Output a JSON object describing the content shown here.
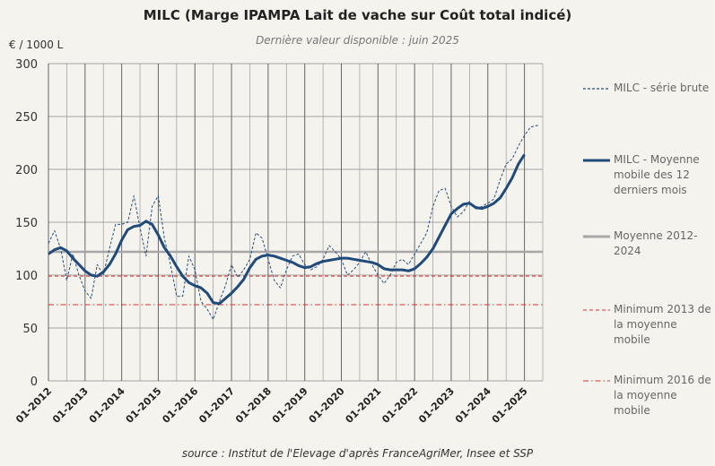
{
  "title": "MILC (Marge IPAMPA Lait de vache sur Coût total indicé)",
  "subtitle": "Dernière valeur disponible : juin 2025",
  "unit": "€ / 1000 L",
  "source": "source : Institut de l'Elevage d'après FranceAgriMer, Insee et SSP",
  "colors": {
    "raw": "#2a4d78",
    "moving_avg": "#1f4a7a",
    "mean": "#a6a6a6",
    "min2013": "#d9312b",
    "min2016": "#d9312b",
    "grid": "#888888",
    "background": "#f5f3ee"
  },
  "chart_data": {
    "type": "line",
    "ylim": [
      0,
      300
    ],
    "yticks": [
      0,
      50,
      100,
      150,
      200,
      250,
      300
    ],
    "x_tick_labels": [
      "01-2012",
      "01-2013",
      "01-2014",
      "01-2015",
      "01-2016",
      "01-2017",
      "01-2018",
      "01-2019",
      "01-2020",
      "01-2021",
      "01-2022",
      "01-2023",
      "01-2024",
      "01-2025"
    ],
    "legend": [
      {
        "key": "raw",
        "label": "MILC - série brute"
      },
      {
        "key": "moving_avg",
        "label": "MILC - Moyenne mobile des 12 derniers mois"
      },
      {
        "key": "mean",
        "label": "Moyenne 2012-2024"
      },
      {
        "key": "min2013",
        "label": "Minimum 2013  de la moyenne mobile"
      },
      {
        "key": "min2016",
        "label": "Minimum 2016 de la moyenne mobile"
      }
    ],
    "series": [
      {
        "name": "MILC - série brute",
        "key": "raw",
        "points": [
          [
            "2012-01",
            130
          ],
          [
            "2012-03",
            142
          ],
          [
            "2012-05",
            125
          ],
          [
            "2012-07",
            95
          ],
          [
            "2012-09",
            120
          ],
          [
            "2012-11",
            100
          ],
          [
            "2013-01",
            85
          ],
          [
            "2013-03",
            78
          ],
          [
            "2013-05",
            110
          ],
          [
            "2013-07",
            100
          ],
          [
            "2013-09",
            125
          ],
          [
            "2013-11",
            148
          ],
          [
            "2014-01",
            148
          ],
          [
            "2014-03",
            150
          ],
          [
            "2014-05",
            175
          ],
          [
            "2014-07",
            145
          ],
          [
            "2014-09",
            118
          ],
          [
            "2014-11",
            165
          ],
          [
            "2015-01",
            175
          ],
          [
            "2015-03",
            135
          ],
          [
            "2015-05",
            110
          ],
          [
            "2015-07",
            80
          ],
          [
            "2015-09",
            80
          ],
          [
            "2015-11",
            118
          ],
          [
            "2016-01",
            105
          ],
          [
            "2016-03",
            75
          ],
          [
            "2016-05",
            68
          ],
          [
            "2016-07",
            58
          ],
          [
            "2016-09",
            75
          ],
          [
            "2016-11",
            90
          ],
          [
            "2017-01",
            110
          ],
          [
            "2017-03",
            98
          ],
          [
            "2017-05",
            105
          ],
          [
            "2017-07",
            115
          ],
          [
            "2017-09",
            140
          ],
          [
            "2017-11",
            135
          ],
          [
            "2018-01",
            115
          ],
          [
            "2018-03",
            95
          ],
          [
            "2018-05",
            88
          ],
          [
            "2018-07",
            105
          ],
          [
            "2018-09",
            118
          ],
          [
            "2018-11",
            120
          ],
          [
            "2019-01",
            110
          ],
          [
            "2019-03",
            105
          ],
          [
            "2019-05",
            108
          ],
          [
            "2019-07",
            115
          ],
          [
            "2019-09",
            128
          ],
          [
            "2019-11",
            122
          ],
          [
            "2020-01",
            115
          ],
          [
            "2020-03",
            100
          ],
          [
            "2020-05",
            105
          ],
          [
            "2020-07",
            112
          ],
          [
            "2020-09",
            122
          ],
          [
            "2020-11",
            110
          ],
          [
            "2021-01",
            100
          ],
          [
            "2021-03",
            92
          ],
          [
            "2021-05",
            100
          ],
          [
            "2021-07",
            112
          ],
          [
            "2021-09",
            115
          ],
          [
            "2021-11",
            110
          ],
          [
            "2022-01",
            120
          ],
          [
            "2022-03",
            130
          ],
          [
            "2022-05",
            140
          ],
          [
            "2022-07",
            165
          ],
          [
            "2022-09",
            180
          ],
          [
            "2022-11",
            182
          ],
          [
            "2023-01",
            165
          ],
          [
            "2023-03",
            155
          ],
          [
            "2023-05",
            160
          ],
          [
            "2023-07",
            170
          ],
          [
            "2023-09",
            162
          ],
          [
            "2023-11",
            165
          ],
          [
            "2024-01",
            168
          ],
          [
            "2024-03",
            172
          ],
          [
            "2024-05",
            190
          ],
          [
            "2024-07",
            205
          ],
          [
            "2024-09",
            210
          ],
          [
            "2024-11",
            222
          ],
          [
            "2025-01",
            232
          ],
          [
            "2025-03",
            240
          ],
          [
            "2025-06",
            242
          ]
        ]
      },
      {
        "name": "MILC - Moyenne mobile des 12 derniers mois",
        "key": "moving_avg",
        "points": [
          [
            "2012-01",
            120
          ],
          [
            "2012-03",
            124
          ],
          [
            "2012-05",
            126
          ],
          [
            "2012-07",
            123
          ],
          [
            "2012-09",
            116
          ],
          [
            "2012-11",
            110
          ],
          [
            "2013-01",
            104
          ],
          [
            "2013-03",
            100
          ],
          [
            "2013-05",
            99
          ],
          [
            "2013-07",
            103
          ],
          [
            "2013-09",
            110
          ],
          [
            "2013-11",
            120
          ],
          [
            "2014-01",
            133
          ],
          [
            "2014-03",
            143
          ],
          [
            "2014-05",
            146
          ],
          [
            "2014-07",
            147
          ],
          [
            "2014-09",
            151
          ],
          [
            "2014-11",
            148
          ],
          [
            "2015-01",
            138
          ],
          [
            "2015-03",
            126
          ],
          [
            "2015-05",
            118
          ],
          [
            "2015-07",
            108
          ],
          [
            "2015-09",
            99
          ],
          [
            "2015-11",
            93
          ],
          [
            "2016-01",
            90
          ],
          [
            "2016-03",
            88
          ],
          [
            "2016-05",
            83
          ],
          [
            "2016-07",
            74
          ],
          [
            "2016-09",
            73
          ],
          [
            "2016-11",
            78
          ],
          [
            "2017-01",
            83
          ],
          [
            "2017-03",
            89
          ],
          [
            "2017-05",
            96
          ],
          [
            "2017-07",
            107
          ],
          [
            "2017-09",
            115
          ],
          [
            "2017-11",
            118
          ],
          [
            "2018-01",
            119
          ],
          [
            "2018-03",
            118
          ],
          [
            "2018-05",
            116
          ],
          [
            "2018-07",
            114
          ],
          [
            "2018-09",
            112
          ],
          [
            "2018-11",
            109
          ],
          [
            "2019-01",
            107
          ],
          [
            "2019-03",
            108
          ],
          [
            "2019-05",
            111
          ],
          [
            "2019-07",
            113
          ],
          [
            "2019-09",
            114
          ],
          [
            "2019-11",
            115
          ],
          [
            "2020-01",
            116
          ],
          [
            "2020-03",
            116
          ],
          [
            "2020-05",
            115
          ],
          [
            "2020-07",
            114
          ],
          [
            "2020-09",
            113
          ],
          [
            "2020-11",
            112
          ],
          [
            "2021-01",
            110
          ],
          [
            "2021-03",
            106
          ],
          [
            "2021-05",
            105
          ],
          [
            "2021-07",
            105
          ],
          [
            "2021-09",
            105
          ],
          [
            "2021-11",
            104
          ],
          [
            "2022-01",
            106
          ],
          [
            "2022-03",
            111
          ],
          [
            "2022-05",
            117
          ],
          [
            "2022-07",
            125
          ],
          [
            "2022-09",
            136
          ],
          [
            "2022-11",
            147
          ],
          [
            "2023-01",
            158
          ],
          [
            "2023-03",
            163
          ],
          [
            "2023-05",
            167
          ],
          [
            "2023-07",
            168
          ],
          [
            "2023-09",
            164
          ],
          [
            "2023-11",
            163
          ],
          [
            "2024-01",
            165
          ],
          [
            "2024-03",
            168
          ],
          [
            "2024-05",
            173
          ],
          [
            "2024-07",
            182
          ],
          [
            "2024-09",
            192
          ],
          [
            "2024-11",
            205
          ],
          [
            "2025-01",
            214
          ]
        ]
      }
    ],
    "reference_lines": [
      {
        "key": "mean",
        "name": "Moyenne 2012-2024",
        "value": 122,
        "style": "solid"
      },
      {
        "key": "min2013",
        "name": "Minimum 2013  de la moyenne mobile",
        "value": 99,
        "style": "dashed"
      },
      {
        "key": "min2016",
        "name": "Minimum 2016 de la moyenne mobile",
        "value": 72,
        "style": "dashdot"
      }
    ],
    "grid": "vertical-and-horizontal",
    "legend_position": "right"
  }
}
